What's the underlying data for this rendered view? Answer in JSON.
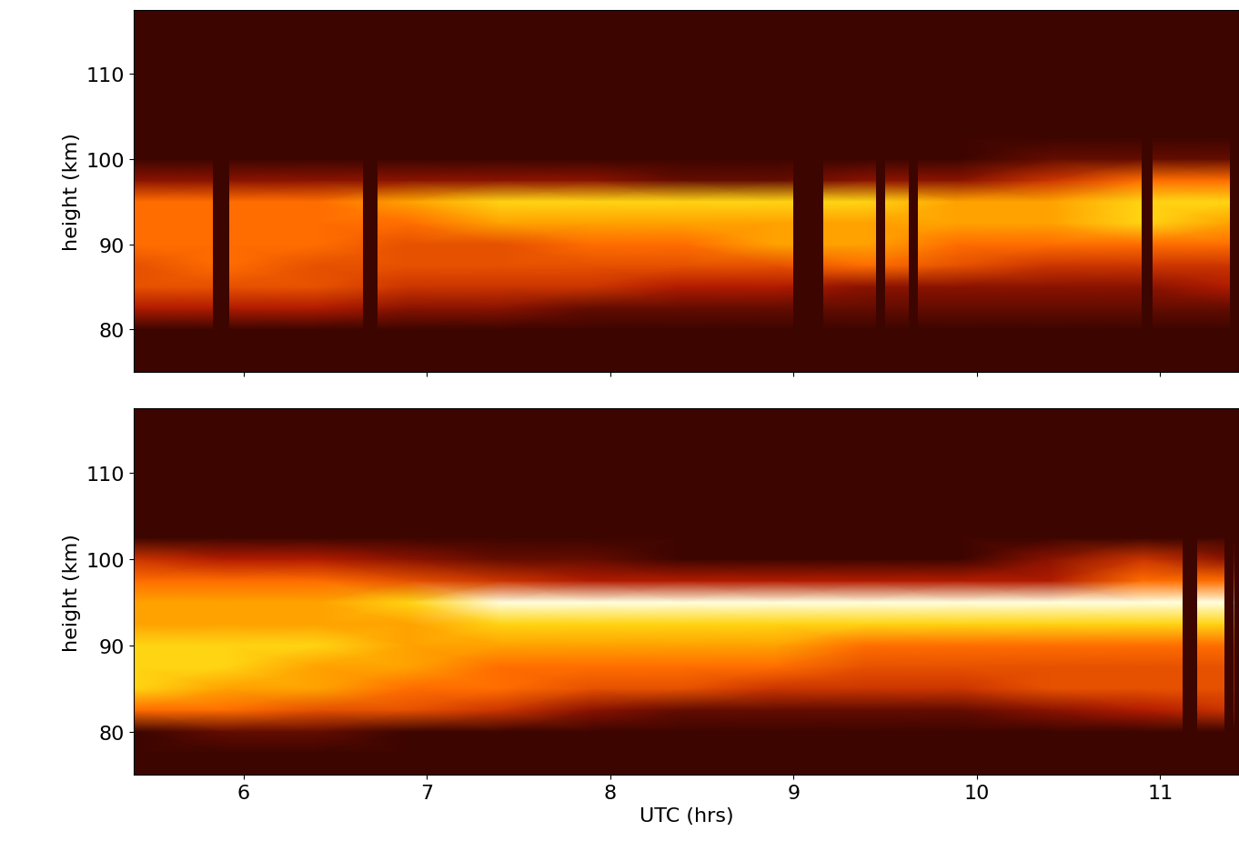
{
  "chart_data": [
    {
      "type": "heatmap",
      "tick_labels": "y",
      "ylabel": "height (km)",
      "xlim": [
        5.4,
        11.43
      ],
      "ylim": [
        75,
        117.5
      ],
      "xticks": [
        6,
        7,
        8,
        9,
        10,
        11
      ],
      "yticks": [
        80,
        90,
        100,
        110
      ],
      "color_range": [
        0,
        9
      ],
      "x": [
        5.4,
        5.9,
        6.4,
        6.9,
        7.4,
        7.9,
        8.4,
        8.9,
        9.4,
        9.9,
        10.4,
        10.9,
        11.4
      ],
      "y": [
        75,
        77.5,
        80,
        82.5,
        85,
        87.5,
        90,
        92.5,
        95,
        97.5,
        100,
        102.5,
        105,
        107.5,
        110,
        112.5,
        115,
        117.5
      ],
      "cells": [
        [
          0,
          0,
          0,
          0,
          0,
          0,
          0,
          0,
          0,
          0,
          0,
          0,
          0
        ],
        [
          0,
          0,
          0,
          0,
          0,
          0,
          0,
          0,
          0,
          0,
          0,
          0,
          0
        ],
        [
          0,
          0,
          0,
          0,
          0,
          0,
          0,
          0,
          0,
          0,
          0,
          0,
          0
        ],
        [
          3,
          3,
          3,
          2,
          2,
          1,
          1,
          1,
          1,
          1,
          1,
          1,
          1
        ],
        [
          5,
          5,
          5,
          4,
          4,
          4,
          3,
          3,
          2,
          2,
          2,
          2,
          3
        ],
        [
          5,
          6,
          5,
          5,
          5,
          5,
          5,
          5,
          6,
          5,
          4,
          4,
          4
        ],
        [
          6,
          6,
          6,
          5,
          5,
          6,
          6,
          7,
          7,
          6,
          6,
          6,
          6
        ],
        [
          6,
          6,
          6,
          6,
          7,
          7,
          7,
          7,
          7,
          7,
          7,
          8,
          7
        ],
        [
          6,
          6,
          6,
          7,
          8,
          8,
          8,
          8,
          8,
          7,
          7,
          8,
          8
        ],
        [
          2,
          2,
          2,
          2,
          2,
          2,
          1,
          1,
          2,
          2,
          4,
          6,
          6
        ],
        [
          0,
          0,
          0,
          0,
          0,
          0,
          0,
          0,
          0,
          0,
          1,
          1,
          1
        ],
        [
          0,
          0,
          0,
          0,
          0,
          0,
          0,
          0,
          0,
          0,
          0,
          0,
          0
        ],
        [
          0,
          0,
          0,
          0,
          0,
          0,
          0,
          0,
          0,
          0,
          0,
          0,
          0
        ],
        [
          0,
          0,
          0,
          0,
          0,
          0,
          0,
          0,
          0,
          0,
          0,
          0,
          0
        ],
        [
          0,
          0,
          0,
          0,
          0,
          0,
          0,
          0,
          0,
          0,
          0,
          0,
          0
        ],
        [
          0,
          0,
          0,
          0,
          0,
          0,
          0,
          0,
          0,
          0,
          0,
          0,
          0
        ],
        [
          0,
          0,
          0,
          0,
          0,
          0,
          0,
          0,
          0,
          0,
          0,
          0,
          0
        ],
        [
          0,
          0,
          0,
          0,
          0,
          0,
          0,
          0,
          0,
          0,
          0,
          0,
          0
        ]
      ],
      "data_gaps": [
        [
          5.83,
          5.92
        ],
        [
          6.65,
          6.73
        ],
        [
          9.0,
          9.16
        ],
        [
          9.45,
          9.5
        ],
        [
          9.63,
          9.68
        ],
        [
          10.9,
          10.96
        ],
        [
          11.38,
          11.43
        ]
      ]
    },
    {
      "type": "heatmap",
      "xlabel": "UTC (hrs)",
      "ylabel": "height (km)",
      "xlim": [
        5.4,
        11.43
      ],
      "ylim": [
        75,
        117.5
      ],
      "xticks": [
        6,
        7,
        8,
        9,
        10,
        11
      ],
      "yticks": [
        80,
        90,
        100,
        110
      ],
      "color_range": [
        0,
        9
      ],
      "x": [
        5.4,
        5.9,
        6.4,
        6.9,
        7.4,
        7.9,
        8.4,
        8.9,
        9.4,
        9.9,
        10.4,
        10.9,
        11.4
      ],
      "y": [
        75,
        77.5,
        80,
        82.5,
        85,
        87.5,
        90,
        92.5,
        95,
        97.5,
        100,
        102.5,
        105,
        107.5,
        110,
        112.5,
        115,
        117.5
      ],
      "cells": [
        [
          0,
          0,
          0,
          0,
          0,
          0,
          0,
          0,
          0,
          0,
          0,
          0,
          0
        ],
        [
          0,
          0,
          0,
          0,
          0,
          0,
          0,
          0,
          0,
          0,
          0,
          0,
          0
        ],
        [
          0,
          1,
          1,
          0,
          0,
          0,
          0,
          0,
          0,
          0,
          0,
          0,
          0
        ],
        [
          6,
          6,
          5,
          5,
          4,
          2,
          1,
          1,
          1,
          1,
          2,
          3,
          4
        ],
        [
          8,
          7,
          7,
          6,
          6,
          5,
          5,
          4,
          4,
          4,
          5,
          5,
          5
        ],
        [
          8,
          8,
          7,
          7,
          6,
          6,
          6,
          6,
          5,
          5,
          5,
          5,
          5
        ],
        [
          8,
          8,
          8,
          7,
          7,
          7,
          7,
          7,
          6,
          6,
          6,
          6,
          6
        ],
        [
          7,
          7,
          7,
          7,
          8,
          8,
          8,
          8,
          8,
          8,
          8,
          8,
          8
        ],
        [
          7,
          7,
          7,
          8,
          9,
          9,
          9,
          9,
          9,
          9,
          9,
          9,
          9
        ],
        [
          6,
          6,
          6,
          5,
          4,
          3,
          3,
          3,
          3,
          3,
          3,
          6,
          6
        ],
        [
          4,
          3,
          3,
          2,
          1,
          1,
          0,
          0,
          0,
          0,
          2,
          4,
          2
        ],
        [
          0,
          0,
          0,
          0,
          0,
          0,
          0,
          0,
          0,
          0,
          0,
          0,
          0
        ],
        [
          0,
          0,
          0,
          0,
          0,
          0,
          0,
          0,
          0,
          0,
          0,
          0,
          0
        ],
        [
          0,
          0,
          0,
          0,
          0,
          0,
          0,
          0,
          0,
          0,
          0,
          0,
          0
        ],
        [
          0,
          0,
          0,
          0,
          0,
          0,
          0,
          0,
          0,
          0,
          0,
          0,
          0
        ],
        [
          0,
          0,
          0,
          0,
          0,
          0,
          0,
          0,
          0,
          0,
          0,
          0,
          0
        ],
        [
          0,
          0,
          0,
          0,
          0,
          0,
          0,
          0,
          0,
          0,
          0,
          0,
          0
        ],
        [
          0,
          0,
          0,
          0,
          0,
          0,
          0,
          0,
          0,
          0,
          0,
          0,
          0
        ]
      ],
      "data_gaps": [
        [
          11.12,
          11.2
        ],
        [
          11.35,
          11.4
        ]
      ]
    }
  ]
}
